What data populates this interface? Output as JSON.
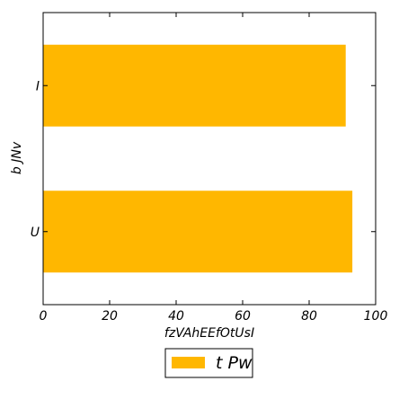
{
  "chart_data": {
    "type": "bar",
    "orientation": "horizontal",
    "categories": [
      "U",
      "I"
    ],
    "series": [
      {
        "name": "t Pw",
        "values": [
          93,
          91
        ],
        "color": "#ffb700"
      }
    ],
    "xlabel": "fzVAhEEfOtUsI",
    "ylabel": "b JNv",
    "xlim": [
      0,
      100
    ],
    "xticks": [
      0,
      20,
      40,
      60,
      80,
      100
    ],
    "grid": false,
    "legend_position": "bottom-center"
  }
}
